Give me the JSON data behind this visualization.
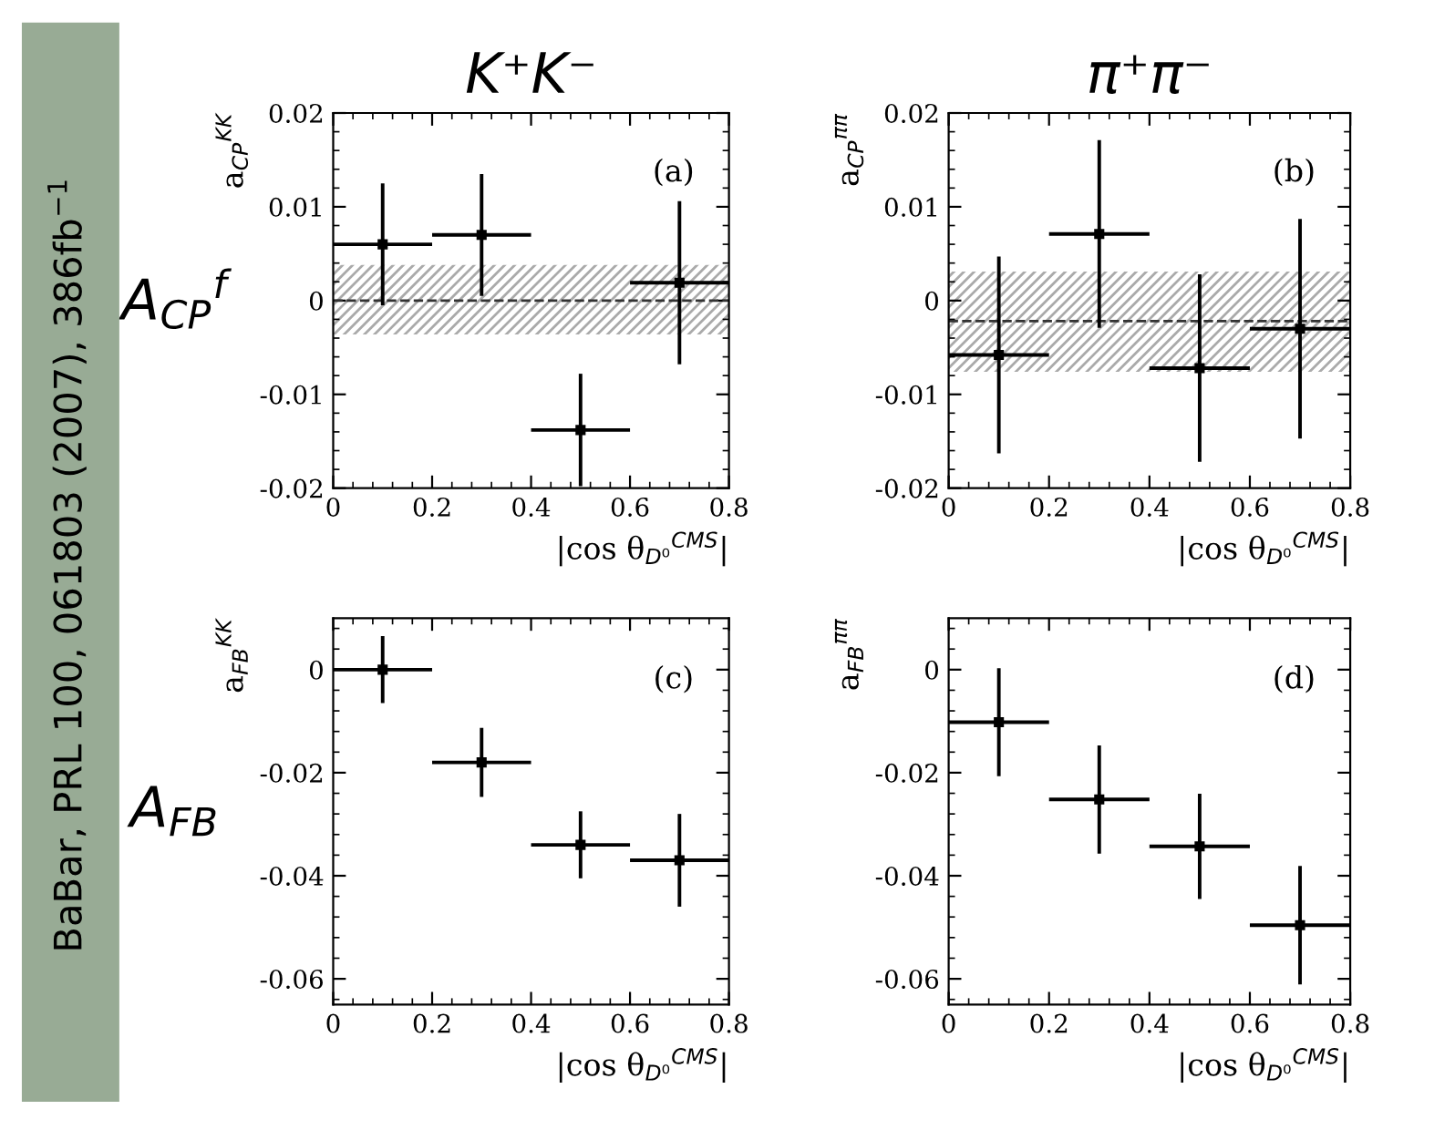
{
  "chart_data": [
    {
      "type": "scatter",
      "title": "K⁺K⁻",
      "ylabel": "a$_{CP}$$^{KK}$",
      "xlabel": "|cos θ$_{D⁰}$$^{CMS}$|",
      "marker": "square",
      "grid": false,
      "x": [
        0.1,
        0.3,
        0.5,
        0.7
      ],
      "series": [
        {
          "color": "#000000",
          "values": [
            0.006,
            0.007,
            -0.0138,
            0.0019
          ],
          "errors": [
            0.0065,
            0.0065,
            0.006,
            0.0087
          ],
          "xerrors": [
            0.1,
            0.1,
            0.1,
            0.1
          ]
        }
      ],
      "xlim": [
        0,
        0.8
      ],
      "xticks": [
        0,
        0.2,
        0.4,
        0.6,
        0.8
      ],
      "ylim": [
        -0.02,
        0.02
      ],
      "yticks": [
        -0.02,
        -0.01,
        0,
        0.01,
        0.02
      ],
      "ref_lines": [
        {
          "axis": "y",
          "value": 0,
          "line_style": "dashed",
          "color": "#333333"
        }
      ],
      "bands": [
        {
          "axis": "y",
          "from": -0.0036,
          "to": 0.0038,
          "color": "#aaaaaa"
        }
      ],
      "annotations": [
        "(a)",
        "A$_{CP}$$^{f}$",
        "BaBar, PRL 100, 061803 (2007), 386fb$^{−1}$"
      ]
    },
    {
      "type": "scatter",
      "title": "π⁺π⁻",
      "ylabel": "a$_{CP}$$^{ππ}$",
      "xlabel": "|cos θ$_{D⁰}$$^{CMS}$|",
      "marker": "square",
      "grid": false,
      "x": [
        0.1,
        0.3,
        0.5,
        0.7
      ],
      "series": [
        {
          "color": "#000000",
          "values": [
            -0.0058,
            0.0071,
            -0.0072,
            -0.003
          ],
          "errors": [
            0.0105,
            0.01,
            0.01,
            0.0117
          ],
          "xerrors": [
            0.1,
            0.1,
            0.1,
            0.1
          ]
        }
      ],
      "xlim": [
        0,
        0.8
      ],
      "xticks": [
        0,
        0.2,
        0.4,
        0.6,
        0.8
      ],
      "ylim": [
        -0.02,
        0.02
      ],
      "yticks": [
        -0.02,
        -0.01,
        0,
        0.01,
        0.02
      ],
      "ref_lines": [
        {
          "axis": "y",
          "value": -0.0022,
          "line_style": "dashed",
          "color": "#333333"
        }
      ],
      "bands": [
        {
          "axis": "y",
          "from": -0.0076,
          "to": 0.0031,
          "color": "#aaaaaa"
        }
      ],
      "annotations": [
        "(b)"
      ]
    },
    {
      "type": "scatter",
      "ylabel": "a$_{FB}$$^{KK}$",
      "xlabel": "|cos θ$_{D⁰}$$^{CMS}$|",
      "marker": "square",
      "grid": false,
      "x": [
        0.1,
        0.3,
        0.5,
        0.7
      ],
      "series": [
        {
          "color": "#000000",
          "values": [
            0.0,
            -0.018,
            -0.034,
            -0.037
          ],
          "errors": [
            0.0065,
            0.0067,
            0.0065,
            0.009
          ],
          "xerrors": [
            0.1,
            0.1,
            0.1,
            0.1
          ]
        }
      ],
      "xlim": [
        0,
        0.8
      ],
      "xticks": [
        0,
        0.2,
        0.4,
        0.6,
        0.8
      ],
      "ylim": [
        -0.065,
        0.01
      ],
      "yticks": [
        -0.06,
        -0.04,
        -0.02,
        0
      ],
      "annotations": [
        "(c)",
        "A$_{FB}$"
      ]
    },
    {
      "type": "scatter",
      "ylabel": "a$_{FB}$$^{ππ}$",
      "xlabel": "|cos θ$_{D⁰}$$^{CMS}$|",
      "marker": "square",
      "grid": false,
      "x": [
        0.1,
        0.3,
        0.5,
        0.7
      ],
      "series": [
        {
          "color": "#000000",
          "values": [
            -0.0102,
            -0.0252,
            -0.0343,
            -0.0496
          ],
          "errors": [
            0.0105,
            0.0105,
            0.0102,
            0.0115
          ],
          "xerrors": [
            0.1,
            0.1,
            0.1,
            0.1
          ]
        }
      ],
      "xlim": [
        0,
        0.8
      ],
      "xticks": [
        0,
        0.2,
        0.4,
        0.6,
        0.8
      ],
      "ylim": [
        -0.065,
        0.01
      ],
      "yticks": [
        -0.06,
        -0.04,
        -0.02,
        0
      ],
      "annotations": [
        "(d)"
      ]
    }
  ]
}
